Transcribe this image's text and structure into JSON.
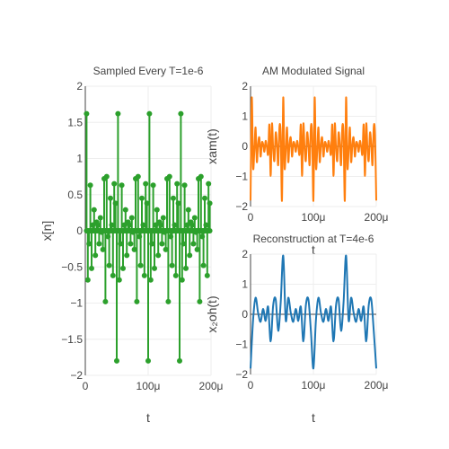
{
  "colors": {
    "sampled": "#2ca02c",
    "am": "#ff7f0e",
    "reconstruction": "#1f77b4",
    "grid": "#eeeeee",
    "zeroline": "#444444",
    "text": "#444444"
  },
  "chart_data": [
    {
      "type": "line",
      "title": "Sampled Every T=1e-6",
      "xlabel": "t",
      "ylabel": "x[n]",
      "xlim": [
        0,
        0.0002
      ],
      "ylim": [
        -2,
        2
      ],
      "x_ticks": [
        {
          "value": 0,
          "label": "0"
        },
        {
          "value": 0.0001,
          "label": "100μ"
        },
        {
          "value": 0.0002,
          "label": "200μ"
        }
      ],
      "y_ticks": [
        {
          "value": -2,
          "label": "−2"
        },
        {
          "value": -1.5,
          "label": "−1.5"
        },
        {
          "value": -1,
          "label": "−1"
        },
        {
          "value": -0.5,
          "label": "−0.5"
        },
        {
          "value": 0,
          "label": "0"
        },
        {
          "value": 0.5,
          "label": "0.5"
        },
        {
          "value": 1,
          "label": "1"
        },
        {
          "value": 1.5,
          "label": "1.5"
        },
        {
          "value": 2,
          "label": "2"
        }
      ],
      "grid": true,
      "legend": "none",
      "series": [
        {
          "style": "stem",
          "markers": true,
          "x": [
            2e-06,
            4e-06,
            6e-06,
            8e-06,
            1e-05,
            1.2e-05,
            1.4e-05,
            1.6e-05,
            1.8e-05,
            2e-05,
            2.2e-05,
            2.4e-05,
            2.6e-05,
            2.8e-05,
            3e-05,
            3.2e-05,
            3.4e-05,
            3.6e-05,
            3.8e-05,
            4e-05,
            4.2e-05,
            4.4e-05,
            4.6e-05,
            4.8e-05,
            5e-05,
            5.2e-05,
            5.4e-05,
            5.6e-05,
            5.8e-05,
            6e-05,
            6.2e-05,
            6.4e-05,
            6.6e-05,
            6.8e-05,
            7e-05,
            7.2e-05,
            7.4e-05,
            7.6e-05,
            7.8e-05,
            8e-05,
            8.2e-05,
            8.4e-05,
            8.6e-05,
            8.8e-05,
            9e-05,
            9.2e-05,
            9.4e-05,
            9.6e-05,
            9.8e-05,
            0.0001,
            0.000102,
            0.000104,
            0.000106,
            0.000108,
            0.00011,
            0.000112,
            0.000114,
            0.000116,
            0.000118,
            0.00012,
            0.000122,
            0.000124,
            0.000126,
            0.000128,
            0.00013,
            0.000132,
            0.000134,
            0.000136,
            0.000138,
            0.00014,
            0.000142,
            0.000144,
            0.000146,
            0.000148,
            0.00015,
            0.000152,
            0.000154,
            0.000156,
            0.000158,
            0.00016,
            0.000162,
            0.000164,
            0.000166,
            0.000168,
            0.00017,
            0.000172,
            0.000174,
            0.000176,
            0.000178,
            0.00018,
            0.000182,
            0.000184,
            0.000186,
            0.000188,
            0.00019,
            0.000192,
            0.000194,
            0.000196,
            0.000198
          ],
          "y": [
            1.62,
            -0.68,
            -0.18,
            0.63,
            -0.52,
            0.08,
            0.29,
            -0.34,
            0.12,
            0.08,
            -0.18,
            0.18,
            -0.02,
            -0.26,
            0.72,
            -0.98,
            0.75,
            -0.08,
            -0.48,
            0.45,
            0.08,
            -0.62,
            0.65,
            0.38,
            -1.8,
            1.62,
            -0.68,
            -0.18,
            0.63,
            -0.52,
            0.08,
            0.29,
            -0.34,
            0.12,
            0.08,
            -0.18,
            0.18,
            -0.02,
            -0.26,
            0.72,
            -0.98,
            0.75,
            -0.08,
            -0.48,
            0.45,
            0.08,
            -0.62,
            0.65,
            0.38,
            -1.8,
            1.62,
            -0.68,
            -0.18,
            0.63,
            -0.52,
            0.08,
            0.29,
            -0.34,
            0.12,
            0.08,
            -0.18,
            0.18,
            -0.02,
            -0.26,
            0.72,
            -0.98,
            0.75,
            -0.08,
            -0.48,
            0.45,
            0.08,
            -0.62,
            0.65,
            0.38,
            -1.8,
            1.62,
            -0.68,
            -0.18,
            0.63,
            -0.52,
            0.08,
            0.29,
            -0.34,
            0.12,
            0.08,
            -0.18,
            0.18,
            -0.02,
            -0.26,
            0.72,
            -0.98,
            0.75,
            -0.08,
            -0.48,
            0.45,
            0.08,
            -0.62,
            0.65,
            0.38
          ]
        }
      ]
    },
    {
      "type": "line",
      "title": "AM Modulated Signal",
      "xlabel": "t",
      "ylabel": "xam(t)",
      "xlim": [
        0,
        0.0002
      ],
      "ylim": [
        -2,
        2
      ],
      "x_ticks": [
        {
          "value": 0,
          "label": "0"
        },
        {
          "value": 0.0001,
          "label": "100μ"
        },
        {
          "value": 0.0002,
          "label": "200μ"
        }
      ],
      "y_ticks": [
        {
          "value": -2,
          "label": "−2"
        },
        {
          "value": -1,
          "label": "−1"
        },
        {
          "value": 0,
          "label": "0"
        },
        {
          "value": 1,
          "label": "1"
        },
        {
          "value": 2,
          "label": "2"
        }
      ],
      "grid": true,
      "legend": "none",
      "series": [
        {
          "x": [
            0,
            2e-06,
            4e-06,
            6e-06,
            8e-06,
            1e-05,
            1.2e-05,
            1.4e-05,
            1.6e-05,
            1.8e-05,
            2e-05,
            2.2e-05,
            2.4e-05,
            2.6e-05,
            2.8e-05,
            3e-05,
            3.2e-05,
            3.4e-05,
            3.6e-05,
            3.8e-05,
            4e-05,
            4.2e-05,
            4.4e-05,
            4.6e-05,
            4.8e-05,
            5e-05,
            5.2e-05,
            5.4e-05,
            5.6e-05,
            5.8e-05,
            6e-05,
            6.2e-05,
            6.4e-05,
            6.6e-05,
            6.8e-05,
            7e-05,
            7.2e-05,
            7.4e-05,
            7.6e-05,
            7.8e-05,
            8e-05,
            8.2e-05,
            8.4e-05,
            8.6e-05,
            8.8e-05,
            9e-05,
            9.2e-05,
            9.4e-05,
            9.6e-05,
            9.8e-05,
            0.0001,
            0.000102,
            0.000104,
            0.000106,
            0.000108,
            0.00011,
            0.000112,
            0.000114,
            0.000116,
            0.000118,
            0.00012,
            0.000122,
            0.000124,
            0.000126,
            0.000128,
            0.00013,
            0.000132,
            0.000134,
            0.000136,
            0.000138,
            0.00014,
            0.000142,
            0.000144,
            0.000146,
            0.000148,
            0.00015,
            0.000152,
            0.000154,
            0.000156,
            0.000158,
            0.00016,
            0.000162,
            0.000164,
            0.000166,
            0.000168,
            0.00017,
            0.000172,
            0.000174,
            0.000176,
            0.000178,
            0.00018,
            0.000182,
            0.000184,
            0.000186,
            0.000188,
            0.00019,
            0.000192,
            0.000194,
            0.000196,
            0.000198,
            0.0002
          ],
          "y": [
            -1.8,
            1.62,
            -0.68,
            -0.18,
            0.63,
            -0.52,
            0.08,
            0.29,
            -0.34,
            0.12,
            0.08,
            -0.18,
            0.18,
            -0.02,
            -0.26,
            0.72,
            -0.98,
            0.75,
            -0.08,
            -0.48,
            0.45,
            0.08,
            -0.62,
            0.65,
            0.38,
            -1.8,
            1.62,
            -0.68,
            -0.18,
            0.63,
            -0.52,
            0.08,
            0.29,
            -0.34,
            0.12,
            0.08,
            -0.18,
            0.18,
            -0.02,
            -0.26,
            0.72,
            -0.98,
            0.75,
            -0.08,
            -0.48,
            0.45,
            0.08,
            -0.62,
            0.65,
            0.38,
            -1.8,
            1.62,
            -0.68,
            -0.18,
            0.63,
            -0.52,
            0.08,
            0.29,
            -0.34,
            0.12,
            0.08,
            -0.18,
            0.18,
            -0.02,
            -0.26,
            0.72,
            -0.98,
            0.75,
            -0.08,
            -0.48,
            0.45,
            0.08,
            -0.62,
            0.65,
            0.38,
            -1.8,
            1.62,
            -0.68,
            -0.18,
            0.63,
            -0.52,
            0.08,
            0.29,
            -0.34,
            0.12,
            0.08,
            -0.18,
            0.18,
            -0.02,
            -0.26,
            0.72,
            -0.98,
            0.75,
            -0.08,
            -0.48,
            0.45,
            0.08,
            -0.62,
            0.65,
            0.38,
            -1.8
          ]
        }
      ]
    },
    {
      "type": "line",
      "title": "Reconstruction at T=4e-6",
      "xlabel": "t",
      "ylabel": "x₂oh(t)",
      "xlim": [
        0,
        0.0002
      ],
      "ylim": [
        -2,
        2
      ],
      "x_ticks": [
        {
          "value": 0,
          "label": "0"
        },
        {
          "value": 0.0001,
          "label": "100μ"
        },
        {
          "value": 0.0002,
          "label": "200μ"
        }
      ],
      "y_ticks": [
        {
          "value": -2,
          "label": "−2"
        },
        {
          "value": -1,
          "label": "−1"
        },
        {
          "value": 0,
          "label": "0"
        },
        {
          "value": 1,
          "label": "1"
        },
        {
          "value": 2,
          "label": "2"
        }
      ],
      "grid": true,
      "legend": "none",
      "series": [
        {
          "x": [
            0,
            4e-06,
            8e-06,
            1.2e-05,
            1.6e-05,
            2e-05,
            2.4e-05,
            2.8e-05,
            3.2e-05,
            3.6e-05,
            4e-05,
            4.4e-05,
            4.8e-05,
            5.2e-05,
            5.6e-05,
            6e-05,
            6.4e-05,
            6.8e-05,
            7.2e-05,
            7.6e-05,
            8e-05,
            8.4e-05,
            8.8e-05,
            9.2e-05,
            9.6e-05,
            0.0001,
            0.000104,
            0.000108,
            0.000112,
            0.000116,
            0.00012,
            0.000124,
            0.000128,
            0.000132,
            0.000136,
            0.00014,
            0.000144,
            0.000148,
            0.000152,
            0.000156,
            0.00016,
            0.000164,
            0.000168,
            0.000172,
            0.000176,
            0.00018,
            0.000184,
            0.000188,
            0.000192,
            0.000196,
            0.0002
          ],
          "y": [
            -1.8,
            -0.2,
            0.55,
            0.05,
            -0.25,
            0.18,
            -0.22,
            0.25,
            -0.9,
            0.3,
            0.5,
            -0.55,
            0.4,
            1.95,
            -0.2,
            0.55,
            0.05,
            -0.25,
            0.18,
            -0.22,
            0.25,
            -0.9,
            0.3,
            0.5,
            -0.55,
            -1.8,
            -0.2,
            0.55,
            0.05,
            -0.25,
            0.18,
            -0.22,
            0.25,
            -0.9,
            0.3,
            0.5,
            -0.55,
            0.4,
            1.95,
            -0.2,
            0.55,
            0.05,
            -0.25,
            0.18,
            -0.22,
            0.25,
            -0.9,
            0.3,
            0.5,
            -0.55,
            -1.8
          ]
        }
      ]
    }
  ]
}
